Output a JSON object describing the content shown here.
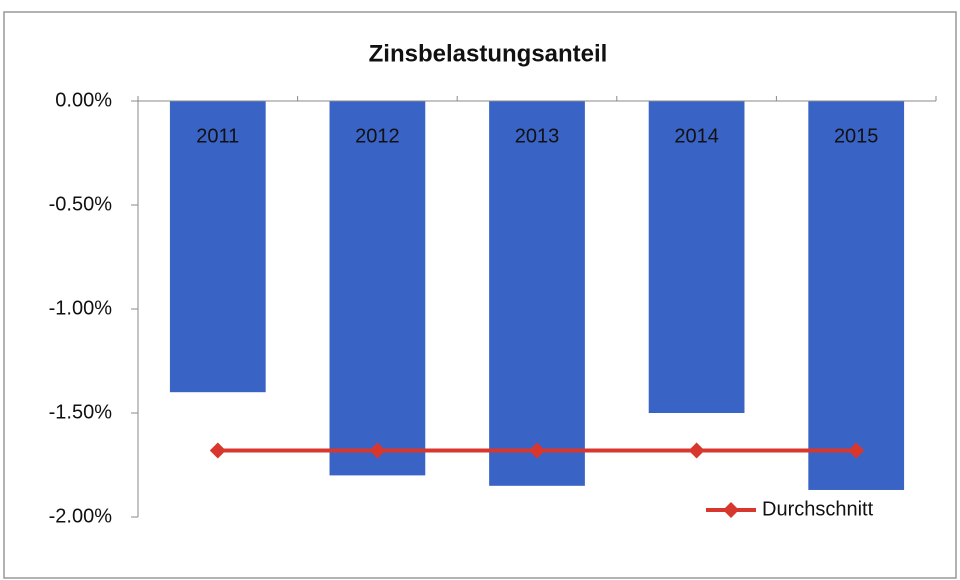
{
  "chart_data": {
    "type": "bar",
    "title": "Zinsbelastungsanteil",
    "categories": [
      "2011",
      "2012",
      "2013",
      "2014",
      "2015"
    ],
    "series": [
      {
        "type": "bar",
        "color": "#3a63c6",
        "values": [
          -1.4,
          -1.8,
          -1.85,
          -1.5,
          -1.87
        ]
      },
      {
        "type": "line",
        "name": "Durchschnitt",
        "color": "#d8372d",
        "values": [
          -1.68,
          -1.68,
          -1.68,
          -1.68,
          -1.68
        ]
      }
    ],
    "ylim": [
      -2,
      0
    ],
    "yticks": [
      {
        "value": 0,
        "label": "0.00%"
      },
      {
        "value": -0.5,
        "label": "-0.50%"
      },
      {
        "value": -1,
        "label": "-1.00%"
      },
      {
        "value": -1.5,
        "label": "-1.50%"
      },
      {
        "value": -2,
        "label": "-2.00%"
      }
    ],
    "grid": false,
    "legend": "bottom-right"
  }
}
